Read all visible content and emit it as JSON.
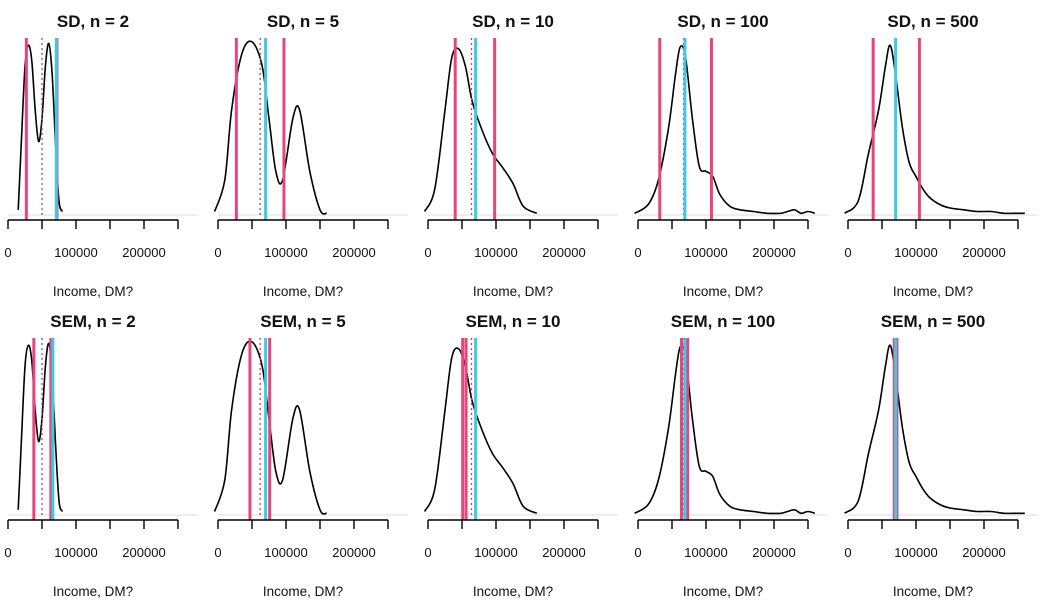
{
  "colors": {
    "density": "#000000",
    "interval": "#e8457a",
    "mean": "#3ccbe0",
    "median": "#c0416b",
    "baseline": "#dddddd",
    "axis": "#000000"
  },
  "chart_data": [
    {
      "type": "line",
      "title": "SD, n =  2",
      "xlabel": "Income, DM?",
      "xlim": [
        0,
        250000
      ],
      "x_ticks": [
        "0",
        "100000",
        "200000"
      ],
      "xticks_values": [
        0,
        100000,
        200000
      ],
      "density": {
        "x": [
          15000,
          20000,
          25000,
          30000,
          35000,
          40000,
          45000,
          50000,
          55000,
          60000,
          65000,
          70000,
          75000,
          80000
        ],
        "y": [
          0.03,
          0.45,
          0.85,
          0.97,
          0.88,
          0.6,
          0.42,
          0.55,
          0.85,
          0.98,
          0.8,
          0.4,
          0.08,
          0.02
        ]
      },
      "bars": {
        "lower": 27000,
        "upper": 72000,
        "mean": 71000,
        "median": 50000
      }
    },
    {
      "type": "line",
      "title": "SD, n =  5",
      "xlabel": "Income, DM?",
      "xlim": [
        0,
        250000
      ],
      "x_ticks": [
        "0",
        "100000",
        "200000"
      ],
      "xticks_values": [
        0,
        100000,
        200000
      ],
      "density": {
        "x": [
          -5000,
          10000,
          20000,
          35000,
          50000,
          65000,
          75000,
          85000,
          95000,
          110000,
          120000,
          135000,
          150000,
          160000
        ],
        "y": [
          0.02,
          0.2,
          0.6,
          0.92,
          0.99,
          0.85,
          0.55,
          0.25,
          0.2,
          0.55,
          0.6,
          0.25,
          0.03,
          0.01
        ]
      },
      "bars": {
        "lower": 27000,
        "upper": 97000,
        "mean": 70000,
        "median": 62000
      }
    },
    {
      "type": "line",
      "title": "SD, n =  10",
      "xlabel": "Income, DM?",
      "xlim": [
        0,
        250000
      ],
      "x_ticks": [
        "0",
        "100000",
        "200000"
      ],
      "xticks_values": [
        0,
        100000,
        200000
      ],
      "density": {
        "x": [
          -5000,
          10000,
          25000,
          35000,
          45000,
          55000,
          65000,
          80000,
          95000,
          110000,
          125000,
          140000,
          160000
        ],
        "y": [
          0.02,
          0.15,
          0.6,
          0.9,
          0.95,
          0.85,
          0.65,
          0.48,
          0.35,
          0.27,
          0.18,
          0.05,
          0.01
        ]
      },
      "bars": {
        "lower": 40000,
        "upper": 98000,
        "mean": 70000,
        "median": 64000
      }
    },
    {
      "type": "line",
      "title": "SD, n =  100",
      "xlabel": "Income, DM?",
      "xlim": [
        0,
        250000
      ],
      "x_ticks": [
        "0",
        "100000",
        "200000"
      ],
      "xticks_values": [
        0,
        100000,
        200000
      ],
      "density": {
        "x": [
          -5000,
          15000,
          30000,
          45000,
          55000,
          62000,
          70000,
          80000,
          90000,
          100000,
          110000,
          120000,
          135000,
          150000,
          170000,
          190000,
          210000,
          220000,
          230000,
          240000,
          250000,
          260000
        ],
        "y": [
          0.01,
          0.06,
          0.2,
          0.5,
          0.8,
          0.96,
          0.9,
          0.55,
          0.28,
          0.25,
          0.22,
          0.12,
          0.05,
          0.03,
          0.02,
          0.01,
          0.01,
          0.02,
          0.03,
          0.01,
          0.02,
          0.01
        ]
      },
      "bars": {
        "lower": 32000,
        "upper": 108000,
        "mean": 69000,
        "median": 67000
      }
    },
    {
      "type": "line",
      "title": "SD, n =  500",
      "xlabel": "Income, DM?",
      "xlim": [
        0,
        250000
      ],
      "x_ticks": [
        "0",
        "100000",
        "200000"
      ],
      "xticks_values": [
        0,
        100000,
        200000
      ],
      "density": {
        "x": [
          -5000,
          15000,
          30000,
          45000,
          55000,
          62000,
          70000,
          80000,
          90000,
          100000,
          110000,
          120000,
          135000,
          150000,
          170000,
          190000,
          210000,
          230000,
          250000,
          260000
        ],
        "y": [
          0.01,
          0.08,
          0.35,
          0.6,
          0.85,
          0.97,
          0.8,
          0.5,
          0.3,
          0.22,
          0.15,
          0.1,
          0.06,
          0.04,
          0.03,
          0.02,
          0.02,
          0.01,
          0.01,
          0.01
        ]
      },
      "bars": {
        "lower": 37000,
        "upper": 105000,
        "mean": 70000,
        "median": 70000
      }
    },
    {
      "type": "line",
      "title": "SEM, n =  2",
      "xlabel": "Income, DM?",
      "xlim": [
        0,
        250000
      ],
      "x_ticks": [
        "0",
        "100000",
        "200000"
      ],
      "xticks_values": [
        0,
        100000,
        200000
      ],
      "density": {
        "x": [
          15000,
          20000,
          25000,
          30000,
          35000,
          40000,
          45000,
          50000,
          55000,
          60000,
          65000,
          70000,
          75000,
          80000
        ],
        "y": [
          0.03,
          0.45,
          0.85,
          0.97,
          0.88,
          0.6,
          0.42,
          0.55,
          0.85,
          0.98,
          0.8,
          0.4,
          0.08,
          0.02
        ]
      },
      "bars": {
        "lower": 38000,
        "upper": 63000,
        "mean": 66000,
        "median": 50000
      }
    },
    {
      "type": "line",
      "title": "SEM, n =  5",
      "xlabel": "Income, DM?",
      "xlim": [
        0,
        250000
      ],
      "x_ticks": [
        "0",
        "100000",
        "200000"
      ],
      "xticks_values": [
        0,
        100000,
        200000
      ],
      "density": {
        "x": [
          -5000,
          10000,
          20000,
          35000,
          50000,
          65000,
          75000,
          85000,
          95000,
          110000,
          120000,
          135000,
          150000,
          160000
        ],
        "y": [
          0.02,
          0.2,
          0.6,
          0.92,
          0.99,
          0.85,
          0.55,
          0.25,
          0.2,
          0.55,
          0.6,
          0.25,
          0.03,
          0.01
        ]
      },
      "bars": {
        "lower": 47000,
        "upper": 76000,
        "mean": 70000,
        "median": 62000
      }
    },
    {
      "type": "line",
      "title": "SEM, n =  10",
      "xlabel": "Income, DM?",
      "xlim": [
        0,
        250000
      ],
      "x_ticks": [
        "0",
        "100000",
        "200000"
      ],
      "xticks_values": [
        0,
        100000,
        200000
      ],
      "density": {
        "x": [
          -5000,
          10000,
          25000,
          35000,
          45000,
          55000,
          65000,
          80000,
          95000,
          110000,
          125000,
          140000,
          160000
        ],
        "y": [
          0.02,
          0.15,
          0.6,
          0.9,
          0.95,
          0.85,
          0.65,
          0.48,
          0.35,
          0.27,
          0.18,
          0.05,
          0.01
        ]
      },
      "bars": {
        "lower": 51000,
        "upper": 56000,
        "mean": 70000,
        "median": 64000
      }
    },
    {
      "type": "line",
      "title": "SEM, n =  100",
      "xlabel": "Income, DM?",
      "xlim": [
        0,
        250000
      ],
      "x_ticks": [
        "0",
        "100000",
        "200000"
      ],
      "xticks_values": [
        0,
        100000,
        200000
      ],
      "density": {
        "x": [
          -5000,
          15000,
          30000,
          45000,
          55000,
          62000,
          70000,
          80000,
          90000,
          100000,
          110000,
          120000,
          135000,
          150000,
          170000,
          190000,
          210000,
          220000,
          230000,
          240000,
          250000,
          260000
        ],
        "y": [
          0.01,
          0.06,
          0.2,
          0.5,
          0.8,
          0.96,
          0.9,
          0.55,
          0.28,
          0.25,
          0.22,
          0.12,
          0.05,
          0.03,
          0.02,
          0.01,
          0.01,
          0.02,
          0.03,
          0.01,
          0.02,
          0.01
        ]
      },
      "bars": {
        "lower": 64000,
        "upper": 73000,
        "mean": 69000,
        "median": 67000
      }
    },
    {
      "type": "line",
      "title": "SEM, n =  500",
      "xlabel": "Income, DM?",
      "xlim": [
        0,
        250000
      ],
      "x_ticks": [
        "0",
        "100000",
        "200000"
      ],
      "xticks_values": [
        0,
        100000,
        200000
      ],
      "density": {
        "x": [
          -5000,
          15000,
          30000,
          45000,
          55000,
          62000,
          70000,
          80000,
          90000,
          100000,
          110000,
          120000,
          135000,
          150000,
          170000,
          190000,
          210000,
          230000,
          250000,
          260000
        ],
        "y": [
          0.01,
          0.08,
          0.35,
          0.6,
          0.85,
          0.97,
          0.8,
          0.5,
          0.3,
          0.22,
          0.15,
          0.1,
          0.06,
          0.04,
          0.03,
          0.02,
          0.02,
          0.01,
          0.01,
          0.01
        ]
      },
      "bars": {
        "lower": 68000,
        "upper": 72000,
        "mean": 70000,
        "median": 70000
      }
    }
  ]
}
